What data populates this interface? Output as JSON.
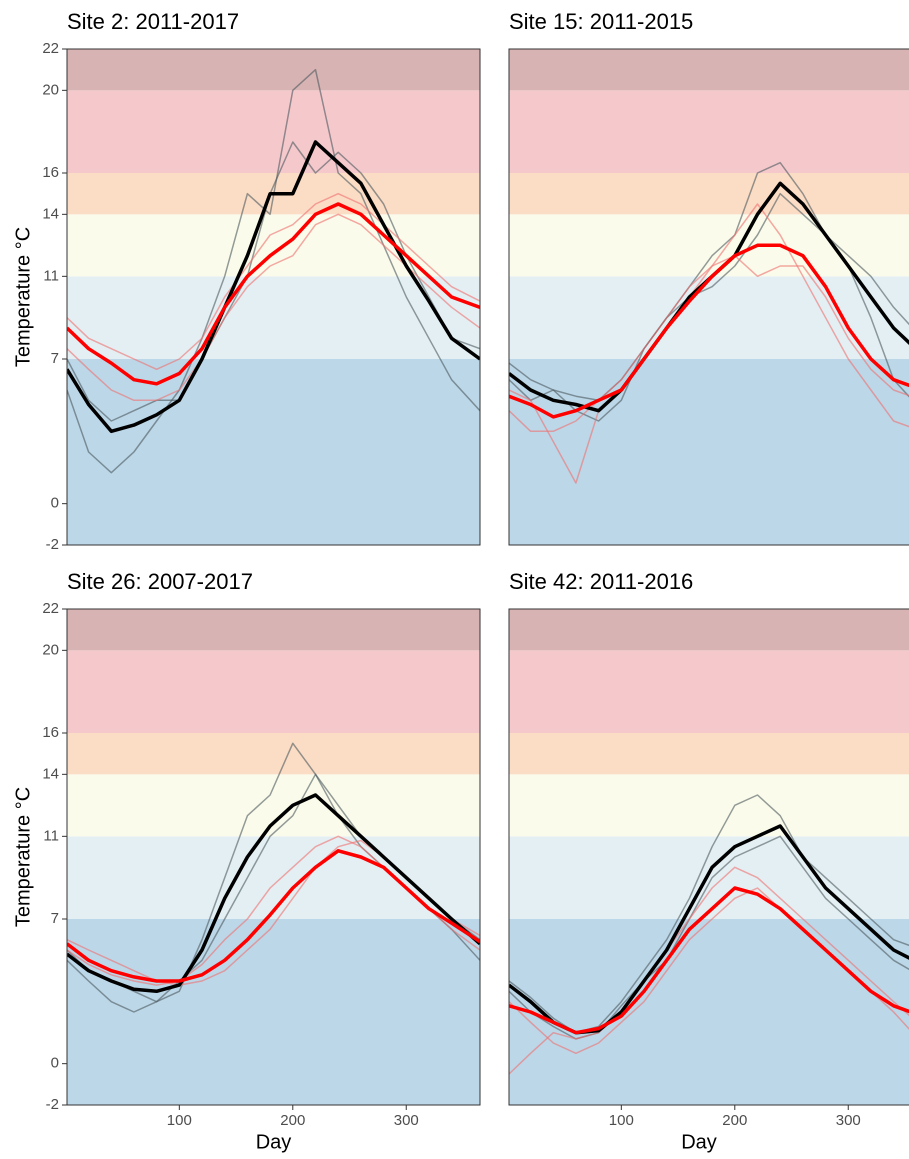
{
  "chart_data": [
    {
      "type": "line",
      "title": "Site 2: 2011-2017",
      "ylabel": "Temperature °C",
      "xlim": [
        1,
        365
      ],
      "ylim": [
        -2,
        22
      ],
      "yticks": [
        -2,
        0,
        7,
        11,
        14,
        16,
        20,
        22
      ],
      "bands": [
        {
          "range": [
            -2,
            7
          ],
          "color": "#bcd7e8"
        },
        {
          "range": [
            7,
            11
          ],
          "color": "#e3eff3"
        },
        {
          "range": [
            11,
            14
          ],
          "color": "#fafbea"
        },
        {
          "range": [
            14,
            16
          ],
          "color": "#fbdcc5"
        },
        {
          "range": [
            16,
            20
          ],
          "color": "#f5c9cc"
        },
        {
          "range": [
            20,
            22
          ],
          "color": "#d8b3b4"
        }
      ],
      "x": [
        1,
        20,
        40,
        60,
        80,
        100,
        120,
        140,
        160,
        180,
        200,
        220,
        240,
        260,
        280,
        300,
        320,
        340,
        365
      ],
      "series": [
        {
          "color": "#4d5a5f",
          "width": 1.5,
          "opacity": 0.6,
          "values": [
            5.5,
            2.5,
            1.5,
            2.5,
            4,
            5.5,
            8,
            11,
            15,
            14,
            20,
            21,
            16,
            15,
            12.5,
            10,
            8,
            6,
            4.5
          ]
        },
        {
          "color": "#4d5a5f",
          "width": 1.5,
          "opacity": 0.6,
          "values": [
            7,
            5,
            4,
            4.5,
            5,
            5,
            7,
            9,
            11,
            15,
            17.5,
            16,
            17,
            16,
            14.5,
            12,
            10,
            8,
            7.5
          ]
        },
        {
          "color": "#f07070",
          "width": 1.5,
          "opacity": 0.6,
          "values": [
            9,
            8,
            7.5,
            7,
            6.5,
            7,
            8,
            10,
            11.5,
            13,
            13.5,
            14.5,
            15,
            14.5,
            13.5,
            12.5,
            11.5,
            10.5,
            9.8
          ]
        },
        {
          "color": "#f07070",
          "width": 1.5,
          "opacity": 0.6,
          "values": [
            7.5,
            6.5,
            5.5,
            5,
            5,
            5.5,
            7,
            9,
            10.5,
            11.5,
            12,
            13.5,
            14,
            13.5,
            12.5,
            11.5,
            10.5,
            9.5,
            8.5
          ]
        },
        {
          "color": "#000000",
          "width": 3.5,
          "opacity": 1,
          "values": [
            6.5,
            4.8,
            3.5,
            3.8,
            4.3,
            5,
            7,
            9.5,
            12,
            15,
            15,
            17.5,
            16.5,
            15.5,
            13.5,
            11.5,
            9.8,
            8,
            7
          ]
        },
        {
          "color": "#ff0000",
          "width": 3.5,
          "opacity": 1,
          "values": [
            8.5,
            7.5,
            6.8,
            6,
            5.8,
            6.3,
            7.5,
            9.5,
            11,
            12,
            12.8,
            14,
            14.5,
            14,
            13,
            12,
            11,
            10,
            9.5
          ]
        }
      ]
    },
    {
      "type": "line",
      "title": "Site 15: 2011-2015",
      "xlim": [
        1,
        365
      ],
      "ylim": [
        -2,
        22
      ],
      "bands": [
        {
          "range": [
            -2,
            7
          ],
          "color": "#bcd7e8"
        },
        {
          "range": [
            7,
            11
          ],
          "color": "#e3eff3"
        },
        {
          "range": [
            11,
            14
          ],
          "color": "#fafbea"
        },
        {
          "range": [
            14,
            16
          ],
          "color": "#fbdcc5"
        },
        {
          "range": [
            16,
            20
          ],
          "color": "#f5c9cc"
        },
        {
          "range": [
            20,
            22
          ],
          "color": "#d8b3b4"
        }
      ],
      "x": [
        1,
        20,
        40,
        60,
        80,
        100,
        120,
        140,
        160,
        180,
        200,
        220,
        240,
        260,
        280,
        300,
        320,
        340,
        365
      ],
      "series": [
        {
          "color": "#4d5a5f",
          "width": 1.5,
          "opacity": 0.6,
          "values": [
            6,
            5,
            5.5,
            4.5,
            4,
            5,
            7.5,
            9,
            10.5,
            12,
            13,
            16,
            16.5,
            15,
            13,
            11.5,
            9,
            6,
            4.5
          ]
        },
        {
          "color": "#4d5a5f",
          "width": 1.5,
          "opacity": 0.6,
          "values": [
            6.8,
            6,
            5.5,
            5.2,
            5,
            6,
            7.5,
            9,
            10,
            10.5,
            11.5,
            13,
            15,
            14,
            13,
            12,
            11,
            9.5,
            8
          ]
        },
        {
          "color": "#f07070",
          "width": 1.5,
          "opacity": 0.6,
          "values": [
            5.5,
            5,
            3,
            1,
            4.5,
            5.5,
            7,
            8.5,
            10,
            11.5,
            13,
            14.5,
            13,
            11,
            9,
            7,
            5.5,
            4,
            3.5
          ]
        },
        {
          "color": "#f07070",
          "width": 1.5,
          "opacity": 0.6,
          "values": [
            4.5,
            3.5,
            3.5,
            4,
            5,
            6,
            7.5,
            9,
            10.5,
            11.5,
            12,
            11,
            11.5,
            11.5,
            10,
            8,
            6.5,
            5.5,
            5
          ]
        },
        {
          "color": "#000000",
          "width": 3.5,
          "opacity": 1,
          "values": [
            6.3,
            5.5,
            5,
            4.8,
            4.5,
            5.5,
            7,
            8.5,
            10,
            11,
            12,
            14,
            15.5,
            14.5,
            13,
            11.5,
            10,
            8.5,
            7.2
          ]
        },
        {
          "color": "#ff0000",
          "width": 3.5,
          "opacity": 1,
          "values": [
            5.2,
            4.8,
            4.2,
            4.5,
            5,
            5.5,
            7,
            8.5,
            9.8,
            11,
            12,
            12.5,
            12.5,
            12,
            10.5,
            8.5,
            7,
            6,
            5.5
          ]
        }
      ]
    },
    {
      "type": "line",
      "title": "Site 26: 2007-2017",
      "ylabel": "Temperature °C",
      "xlabel": "Day",
      "xlim": [
        1,
        365
      ],
      "xticks": [
        100,
        200,
        300
      ],
      "ylim": [
        -2,
        22
      ],
      "yticks": [
        -2,
        0,
        7,
        11,
        14,
        16,
        20,
        22
      ],
      "bands": [
        {
          "range": [
            -2,
            7
          ],
          "color": "#bcd7e8"
        },
        {
          "range": [
            7,
            11
          ],
          "color": "#e3eff3"
        },
        {
          "range": [
            11,
            14
          ],
          "color": "#fafbea"
        },
        {
          "range": [
            14,
            16
          ],
          "color": "#fbdcc5"
        },
        {
          "range": [
            16,
            20
          ],
          "color": "#f5c9cc"
        },
        {
          "range": [
            20,
            22
          ],
          "color": "#d8b3b4"
        }
      ],
      "x": [
        1,
        20,
        40,
        60,
        80,
        100,
        120,
        140,
        160,
        180,
        200,
        220,
        240,
        260,
        280,
        300,
        320,
        340,
        365
      ],
      "series": [
        {
          "color": "#4d5a5f",
          "width": 1.5,
          "opacity": 0.6,
          "values": [
            5,
            4,
            3,
            2.5,
            3,
            3.5,
            6,
            9,
            12,
            13,
            15.5,
            14,
            12,
            10.5,
            9.5,
            8.5,
            7.5,
            6.5,
            5
          ]
        },
        {
          "color": "#4d5a5f",
          "width": 1.5,
          "opacity": 0.6,
          "values": [
            5.5,
            4.5,
            4,
            3.5,
            3,
            4,
            5,
            7,
            9,
            11,
            12,
            14,
            12.5,
            11,
            10,
            9,
            8,
            7,
            6
          ]
        },
        {
          "color": "#f07070",
          "width": 1.5,
          "opacity": 0.6,
          "values": [
            6,
            5.5,
            5,
            4.5,
            4,
            3.8,
            4,
            4.5,
            5.5,
            6.5,
            8,
            9.5,
            10.5,
            10.8,
            10,
            9,
            8,
            7,
            6.2
          ]
        },
        {
          "color": "#f07070",
          "width": 1.5,
          "opacity": 0.6,
          "values": [
            5.5,
            4.8,
            4.3,
            4,
            3.8,
            4,
            4.8,
            6,
            7,
            8.5,
            9.5,
            10.5,
            11,
            10.5,
            9.5,
            8.5,
            7.5,
            6.5,
            5.5
          ]
        },
        {
          "color": "#000000",
          "width": 3.5,
          "opacity": 1,
          "values": [
            5.3,
            4.5,
            4,
            3.6,
            3.5,
            3.8,
            5.5,
            8,
            10,
            11.5,
            12.5,
            13,
            12,
            11,
            10,
            9,
            8,
            7,
            5.8
          ]
        },
        {
          "color": "#ff0000",
          "width": 3.5,
          "opacity": 1,
          "values": [
            5.8,
            5,
            4.5,
            4.2,
            4,
            4,
            4.3,
            5,
            6,
            7.2,
            8.5,
            9.5,
            10.3,
            10,
            9.5,
            8.5,
            7.5,
            6.8,
            5.9
          ]
        }
      ]
    },
    {
      "type": "line",
      "title": "Site 42: 2011-2016",
      "xlabel": "Day",
      "xlim": [
        1,
        365
      ],
      "xticks": [
        100,
        200,
        300
      ],
      "ylim": [
        -2,
        22
      ],
      "bands": [
        {
          "range": [
            -2,
            7
          ],
          "color": "#bcd7e8"
        },
        {
          "range": [
            7,
            11
          ],
          "color": "#e3eff3"
        },
        {
          "range": [
            11,
            14
          ],
          "color": "#fafbea"
        },
        {
          "range": [
            14,
            16
          ],
          "color": "#fbdcc5"
        },
        {
          "range": [
            16,
            20
          ],
          "color": "#f5c9cc"
        },
        {
          "range": [
            20,
            22
          ],
          "color": "#d8b3b4"
        }
      ],
      "x": [
        1,
        20,
        40,
        60,
        80,
        100,
        120,
        140,
        160,
        180,
        200,
        220,
        240,
        260,
        280,
        300,
        320,
        340,
        365
      ],
      "series": [
        {
          "color": "#4d5a5f",
          "width": 1.5,
          "opacity": 0.6,
          "values": [
            4,
            3.2,
            2.2,
            1.5,
            1.8,
            3,
            4.5,
            6,
            8,
            10.5,
            12.5,
            13,
            12,
            10,
            9,
            8,
            7,
            6,
            5.5
          ]
        },
        {
          "color": "#4d5a5f",
          "width": 1.5,
          "opacity": 0.6,
          "values": [
            3.5,
            2.5,
            1.8,
            1.2,
            1.5,
            2.8,
            4,
            5,
            7,
            9,
            10,
            10.5,
            11,
            9.5,
            8,
            7,
            6,
            5,
            4.2
          ]
        },
        {
          "color": "#f07070",
          "width": 1.5,
          "opacity": 0.6,
          "values": [
            -0.5,
            0.5,
            1.5,
            1.2,
            1.5,
            2.5,
            4,
            5.5,
            7,
            8.5,
            9.5,
            9,
            8,
            7,
            6,
            5,
            4,
            3,
            1.8
          ]
        },
        {
          "color": "#f07070",
          "width": 1.5,
          "opacity": 0.6,
          "values": [
            3,
            2,
            1,
            0.5,
            1,
            2,
            3,
            4.5,
            6,
            7,
            8,
            8.5,
            7.5,
            6.5,
            5.5,
            4.5,
            3.5,
            2.5,
            1
          ]
        },
        {
          "color": "#000000",
          "width": 3.5,
          "opacity": 1,
          "values": [
            3.8,
            3,
            2,
            1.5,
            1.6,
            2.5,
            4,
            5.5,
            7.5,
            9.5,
            10.5,
            11,
            11.5,
            10,
            8.5,
            7.5,
            6.5,
            5.5,
            4.8
          ]
        },
        {
          "color": "#ff0000",
          "width": 3.5,
          "opacity": 1,
          "values": [
            2.8,
            2.5,
            2,
            1.5,
            1.7,
            2.3,
            3.5,
            5,
            6.5,
            7.5,
            8.5,
            8.2,
            7.5,
            6.5,
            5.5,
            4.5,
            3.5,
            2.8,
            2.3
          ]
        }
      ]
    }
  ]
}
